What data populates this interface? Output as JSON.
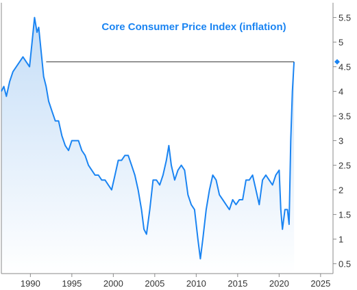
{
  "colors": {
    "line": "#1a84f2",
    "title": "#1a84f2",
    "fill_top": "#c4ddf7",
    "fill_bottom": "#ffffff",
    "frame": "#888888",
    "marker_line": "#333333",
    "tick_text": "#333333"
  },
  "chart_data": {
    "type": "area",
    "title": "Core Consumer Price Index (inflation)",
    "xlabel": "",
    "ylabel": "",
    "xlim": [
      1986.5,
      2026.5
    ],
    "ylim": [
      0.3,
      5.8
    ],
    "x_ticks": [
      1990,
      1995,
      2000,
      2005,
      2010,
      2015,
      2020,
      2025
    ],
    "x_tick_labels": [
      "1990",
      "1995",
      "2000",
      "2005",
      "2010",
      "2015",
      "2020",
      "2025"
    ],
    "y_ticks": [
      0.5,
      1,
      1.5,
      2,
      2.5,
      3,
      3.5,
      4,
      4.5,
      5,
      5.5
    ],
    "y_tick_labels": [
      "0.5",
      "1",
      "1.5",
      "2",
      "2.5",
      "3",
      "3.5",
      "4",
      "4.5",
      "5",
      "5.5"
    ],
    "y_axis_side": "right",
    "grid": false,
    "reference_line": {
      "y": 4.6,
      "from_x": 1991.9,
      "to_x": 2021.8
    },
    "last_value_marker": {
      "x": 2021.8,
      "y": 4.6,
      "shape": "diamond",
      "position": "right-axis"
    },
    "series": [
      {
        "x": [
          1986.5,
          1986.8,
          1987.1,
          1987.5,
          1987.9,
          1988.3,
          1988.7,
          1989.1,
          1989.5,
          1989.9,
          1990.2,
          1990.5,
          1990.8,
          1991.0,
          1991.3,
          1991.6,
          1991.9,
          1992.2,
          1992.6,
          1993.0,
          1993.4,
          1993.8,
          1994.2,
          1994.6,
          1995.0,
          1995.4,
          1995.8,
          1996.2,
          1996.6,
          1997.0,
          1997.4,
          1997.8,
          1998.2,
          1998.6,
          1999.0,
          1999.4,
          1999.8,
          2000.2,
          2000.6,
          2001.0,
          2001.4,
          2001.8,
          2002.2,
          2002.6,
          2003.0,
          2003.4,
          2003.7,
          2004.0,
          2004.4,
          2004.8,
          2005.2,
          2005.6,
          2006.0,
          2006.4,
          2006.7,
          2007.0,
          2007.4,
          2007.8,
          2008.2,
          2008.6,
          2009.0,
          2009.4,
          2009.8,
          2010.2,
          2010.5,
          2010.8,
          2011.2,
          2011.6,
          2012.0,
          2012.4,
          2012.8,
          2013.2,
          2013.6,
          2014.0,
          2014.4,
          2014.8,
          2015.2,
          2015.6,
          2016.0,
          2016.4,
          2016.8,
          2017.2,
          2017.6,
          2018.0,
          2018.4,
          2018.8,
          2019.2,
          2019.6,
          2020.0,
          2020.2,
          2020.4,
          2020.7,
          2021.0,
          2021.2,
          2021.4,
          2021.6,
          2021.8
        ],
        "y": [
          4.0,
          4.1,
          3.9,
          4.2,
          4.4,
          4.5,
          4.6,
          4.7,
          4.6,
          4.5,
          5.0,
          5.5,
          5.2,
          5.3,
          4.8,
          4.3,
          4.1,
          3.8,
          3.6,
          3.4,
          3.4,
          3.1,
          2.9,
          2.8,
          3.0,
          3.0,
          3.0,
          2.8,
          2.7,
          2.5,
          2.4,
          2.3,
          2.3,
          2.2,
          2.2,
          2.1,
          2.0,
          2.3,
          2.6,
          2.6,
          2.7,
          2.7,
          2.5,
          2.3,
          2.0,
          1.6,
          1.2,
          1.1,
          1.6,
          2.2,
          2.2,
          2.1,
          2.3,
          2.6,
          2.9,
          2.5,
          2.2,
          2.4,
          2.5,
          2.4,
          1.9,
          1.7,
          1.6,
          1.0,
          0.6,
          1.0,
          1.6,
          2.0,
          2.3,
          2.2,
          1.9,
          1.8,
          1.7,
          1.6,
          1.8,
          1.7,
          1.8,
          1.8,
          2.2,
          2.2,
          2.3,
          2.0,
          1.7,
          2.2,
          2.3,
          2.2,
          2.1,
          2.3,
          2.4,
          1.6,
          1.2,
          1.6,
          1.6,
          1.3,
          3.0,
          4.0,
          4.6
        ]
      }
    ]
  }
}
